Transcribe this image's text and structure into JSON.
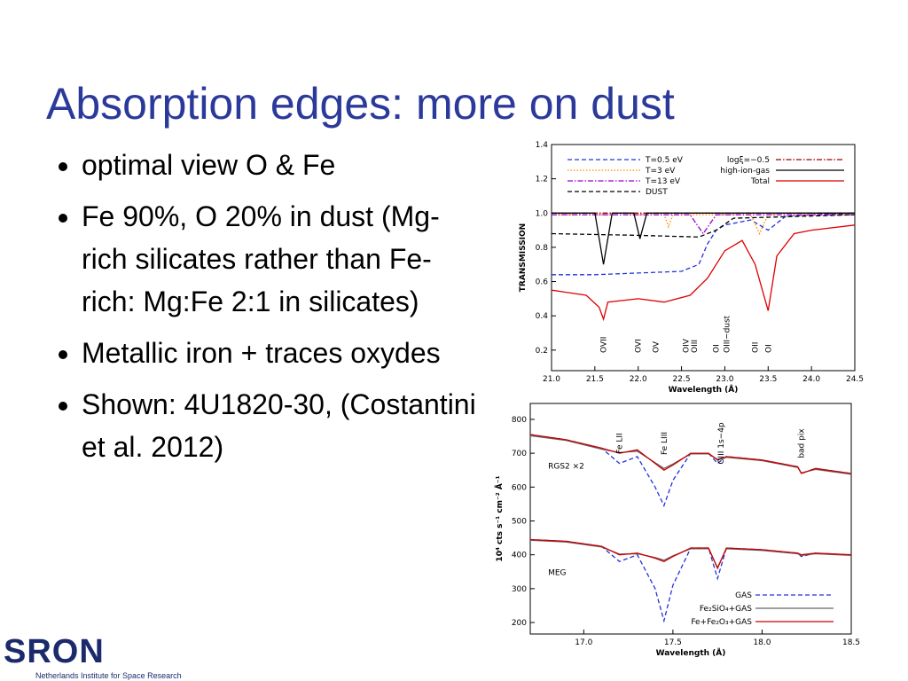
{
  "title": "Absorption edges: more on dust",
  "bullets": [
    "optimal view O & Fe",
    "Fe 90%, O 20% in dust (Mg-rich silicates rather than Fe-rich: Mg:Fe 2:1 in silicates)",
    "Metallic iron + traces oxydes",
    "Shown: 4U1820-30, (Costantini et al. 2012)"
  ],
  "logo": {
    "name": "SRON",
    "subtitle": "Netherlands Institute for Space Research"
  },
  "chart_data": [
    {
      "type": "line",
      "xlabel": "Wavelength (Å)",
      "ylabel": "TRANSMISSION",
      "xlim": [
        21.0,
        24.5
      ],
      "ylim": [
        0.08,
        1.4
      ],
      "xticks": [
        {
          "value": 21,
          "label": "21.0"
        },
        21.5,
        {
          "value": 22,
          "label": "22.0"
        },
        22.5,
        {
          "value": 23,
          "label": "23.0"
        },
        23.5,
        {
          "value": 24,
          "label": "24.0"
        },
        24.5
      ],
      "yticks": [
        0.2,
        0.4,
        0.6,
        0.8,
        {
          "value": 1,
          "label": "1.0"
        },
        1.2,
        1.4
      ],
      "series": [
        {
          "name": "T=0.5 eV",
          "color": "#2233dd",
          "dash": "dashed",
          "x": [
            21.0,
            21.5,
            22.0,
            22.5,
            22.7,
            22.8,
            22.9,
            23.0,
            23.3,
            23.5,
            23.7,
            24.0,
            24.5
          ],
          "values": [
            0.64,
            0.64,
            0.65,
            0.66,
            0.7,
            0.82,
            0.9,
            0.93,
            0.96,
            0.9,
            0.98,
            0.99,
            1.0
          ]
        },
        {
          "name": "T=3 eV",
          "color": "#ff8800",
          "dash": "dotted",
          "x": [
            21.0,
            22.3,
            22.35,
            22.4,
            23.3,
            23.4,
            23.5,
            24.5
          ],
          "values": [
            0.99,
            0.99,
            0.92,
            0.99,
            0.99,
            0.88,
            0.99,
            0.99
          ]
        },
        {
          "name": "T=13 eV",
          "color": "#9900cc",
          "dash": "dashdot",
          "x": [
            21.0,
            22.6,
            22.75,
            22.9,
            24.5
          ],
          "values": [
            0.99,
            0.99,
            0.88,
            0.99,
            0.99
          ]
        },
        {
          "name": "DUST",
          "color": "#000000",
          "dash": "dashed",
          "x": [
            21.0,
            22.0,
            22.7,
            22.9,
            23.1,
            24.5
          ],
          "values": [
            0.88,
            0.87,
            0.86,
            0.9,
            0.97,
            0.99
          ]
        },
        {
          "name": "logξ=−0.5",
          "color": "#990000",
          "dash": "dashdot",
          "x": [
            21.0,
            24.5
          ],
          "values": [
            1.0,
            1.0
          ]
        },
        {
          "name": "high-ion-gas",
          "color": "#000000",
          "dash": "solid",
          "x": [
            21.0,
            21.5,
            21.6,
            21.7,
            21.95,
            22.02,
            22.1,
            24.5
          ],
          "values": [
            1.0,
            1.0,
            0.7,
            1.0,
            1.0,
            0.85,
            1.0,
            1.0
          ]
        },
        {
          "name": "Total",
          "color": "#dd0000",
          "dash": "solid",
          "x": [
            21.0,
            21.4,
            21.55,
            21.6,
            21.65,
            22.0,
            22.3,
            22.6,
            22.8,
            23.0,
            23.2,
            23.35,
            23.5,
            23.6,
            23.8,
            24.0,
            24.5
          ],
          "values": [
            0.55,
            0.52,
            0.45,
            0.38,
            0.48,
            0.5,
            0.48,
            0.52,
            0.62,
            0.78,
            0.84,
            0.7,
            0.43,
            0.75,
            0.88,
            0.9,
            0.93
          ]
        }
      ],
      "annotations": [
        {
          "text": "OVII",
          "x": 21.6
        },
        {
          "text": "OVI",
          "x": 22.0
        },
        {
          "text": "OV",
          "x": 22.2
        },
        {
          "text": "OIV",
          "x": 22.55
        },
        {
          "text": "OIII",
          "x": 22.65
        },
        {
          "text": "OI",
          "x": 22.9
        },
        {
          "text": "OIII−dust",
          "x": 23.02
        },
        {
          "text": "OII",
          "x": 23.35
        },
        {
          "text": "OI",
          "x": 23.5
        }
      ]
    },
    {
      "type": "line",
      "xlabel": "Wavelength (Å)",
      "ylabel": "10⁴ cts s⁻¹ cm⁻² Å⁻¹",
      "xlim": [
        16.7,
        18.5
      ],
      "ylim": [
        166,
        847
      ],
      "xticks": [
        {
          "value": 17,
          "label": "17.0"
        },
        17.5,
        {
          "value": 18,
          "label": "18.0"
        },
        18.5
      ],
      "yticks": [
        200,
        300,
        400,
        500,
        600,
        700,
        800
      ],
      "x": [
        16.7,
        16.9,
        17.1,
        17.2,
        17.3,
        17.4,
        17.45,
        17.5,
        17.6,
        17.7,
        17.75,
        17.8,
        18.0,
        18.2,
        18.22,
        18.3,
        18.5
      ],
      "series": [
        {
          "name": "GAS",
          "color": "#2233dd",
          "dash": "dashed",
          "values": [
            755,
            740,
            715,
            670,
            690,
            600,
            545,
            620,
            700,
            700,
            670,
            690,
            680,
            660,
            640,
            655,
            640
          ],
          "meg_values": [
            445,
            440,
            425,
            380,
            400,
            300,
            205,
            310,
            420,
            420,
            330,
            420,
            415,
            405,
            395,
            405,
            400
          ]
        },
        {
          "name": "Fe₂SiO₄+GAS",
          "color": "#666666",
          "dash": "solid",
          "values": [
            752,
            738,
            712,
            702,
            706,
            672,
            655,
            668,
            698,
            698,
            682,
            688,
            678,
            658,
            642,
            652,
            638
          ],
          "meg_values": [
            443,
            438,
            423,
            402,
            403,
            392,
            384,
            397,
            418,
            418,
            362,
            418,
            413,
            403,
            398,
            403,
            398
          ]
        },
        {
          "name": "Fe+Fe₂O₃+GAS",
          "color": "#cc0000",
          "dash": "solid",
          "values": [
            755,
            740,
            715,
            700,
            710,
            670,
            650,
            665,
            700,
            700,
            680,
            690,
            680,
            660,
            640,
            655,
            640
          ],
          "meg_values": [
            445,
            440,
            425,
            400,
            405,
            390,
            380,
            395,
            420,
            420,
            360,
            420,
            415,
            405,
            400,
            405,
            400
          ]
        }
      ],
      "annotations": [
        {
          "text": "Fe LII",
          "x": 17.2
        },
        {
          "text": "Fe LIII",
          "x": 17.45
        },
        {
          "text": "OIII 1s−4p",
          "x": 17.77
        },
        {
          "text": "bad pix",
          "x": 18.22
        },
        {
          "text": "RGS2 ×2",
          "x": 16.8,
          "y": 655
        },
        {
          "text": "MEG",
          "x": 16.8,
          "y": 340
        }
      ]
    }
  ]
}
